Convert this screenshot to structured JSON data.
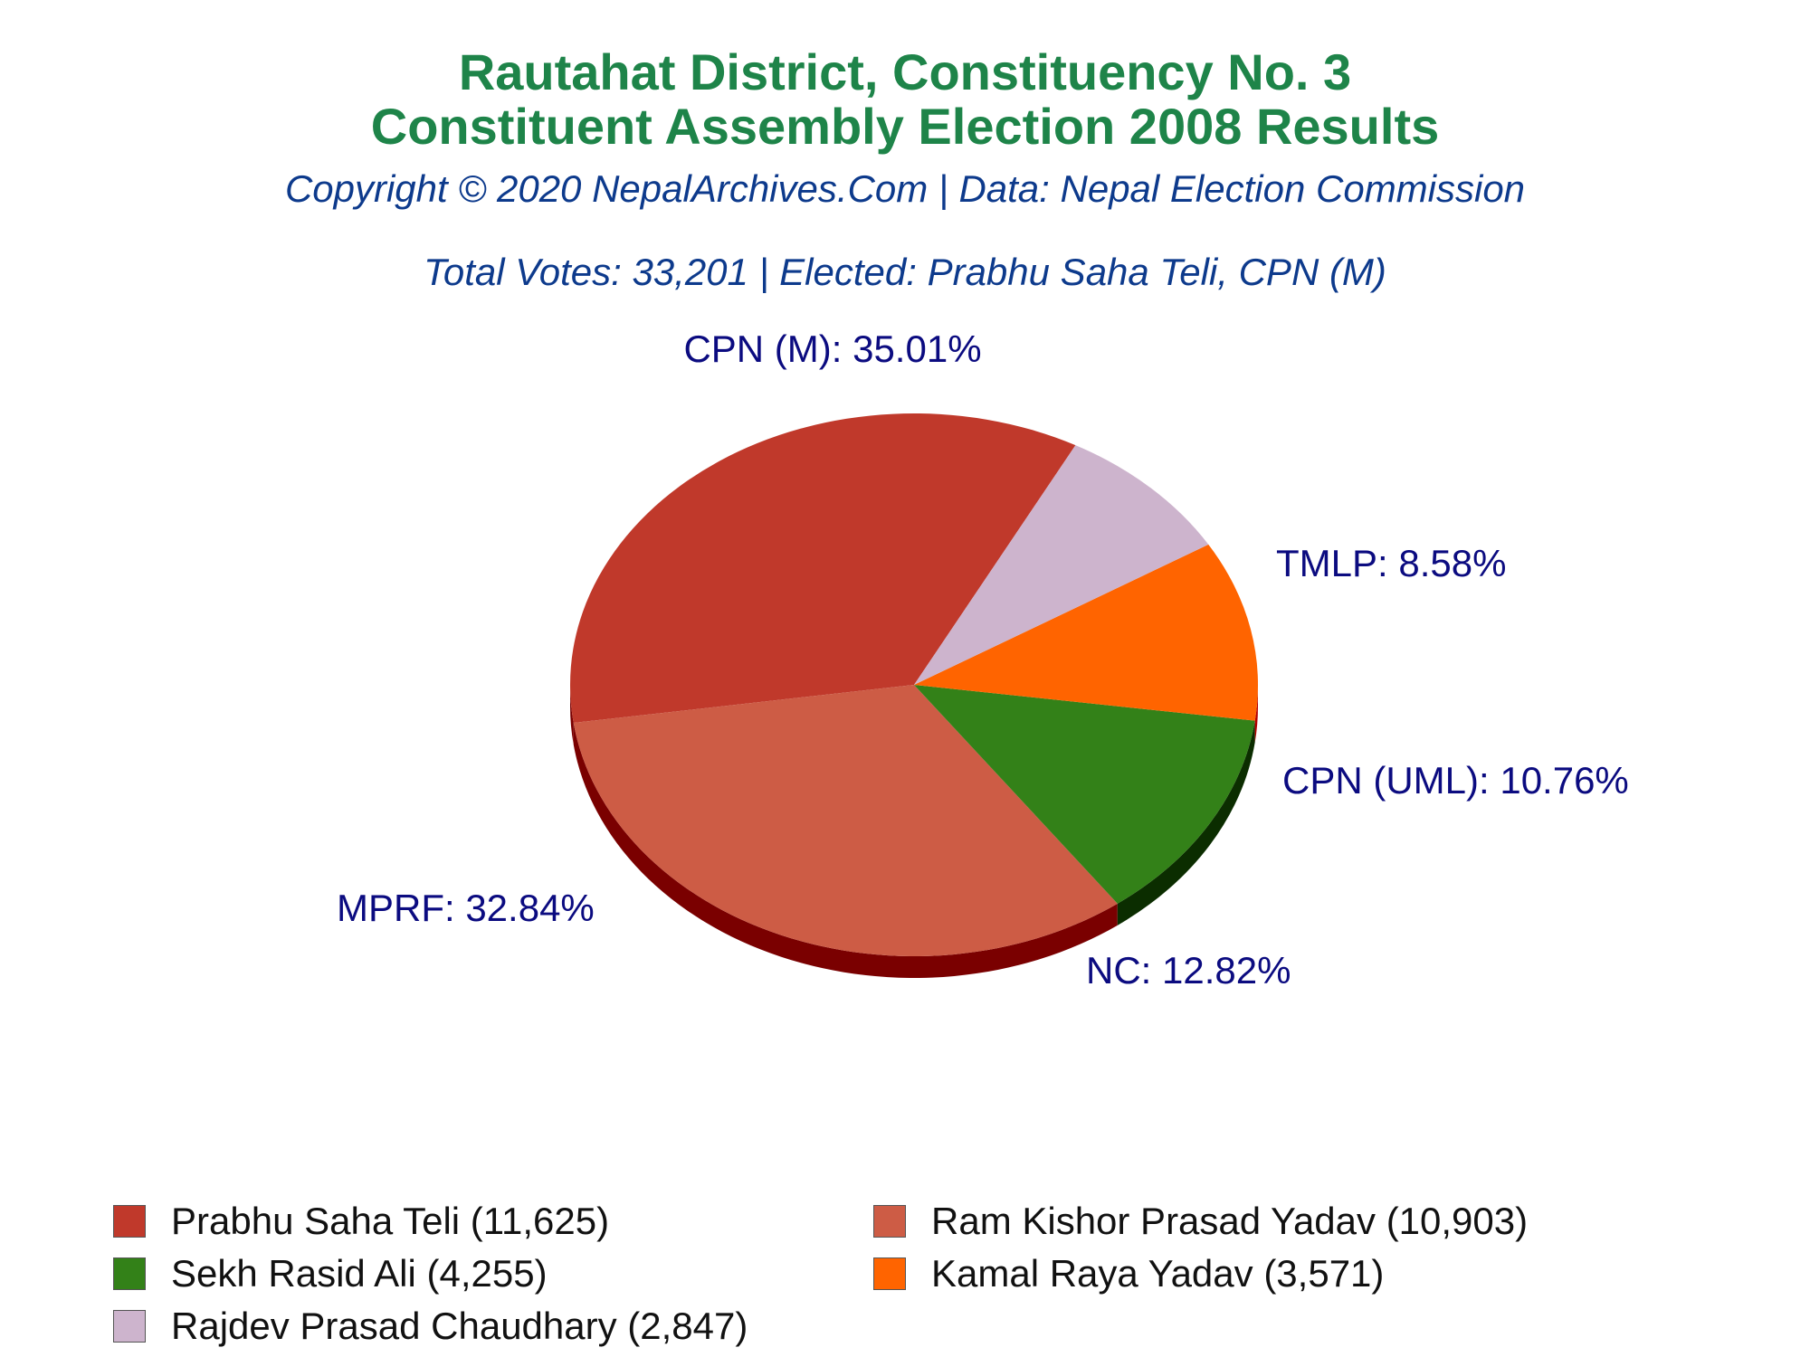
{
  "header": {
    "title_line1": "Rautahat District, Constituency No. 3",
    "title_line2": "Constituent Assembly Election 2008 Results",
    "copyright": "Copyright © 2020 NepalArchives.Com | Data: Nepal Election Commission",
    "summary": "Total Votes: 33,201 | Elected: Prabhu Saha Teli, CPN (M)"
  },
  "chart_data": {
    "type": "pie",
    "slices": [
      {
        "party": "CPN (M)",
        "candidate": "Prabhu Saha Teli",
        "votes": 11625,
        "percent": 35.01,
        "label": "CPN (M): 35.01%",
        "legend": "Prabhu Saha Teli (11,625)",
        "color": "#c0392b",
        "side_color": "#7a0000"
      },
      {
        "party": "MPRF",
        "candidate": "Ram Kishor Prasad Yadav",
        "votes": 10903,
        "percent": 32.84,
        "label": "MPRF: 32.84%",
        "legend": "Ram Kishor Prasad Yadav (10,903)",
        "color": "#cd5c45",
        "side_color": "#7a0000"
      },
      {
        "party": "NC",
        "candidate": "Sekh Rasid Ali",
        "votes": 4255,
        "percent": 12.82,
        "label": "NC: 12.82%",
        "legend": "Sekh Rasid Ali (4,255)",
        "color": "#338118",
        "side_color": "#0b2d00"
      },
      {
        "party": "CPN (UML)",
        "candidate": "Kamal Raya Yadav",
        "votes": 3571,
        "percent": 10.76,
        "label": "CPN (UML): 10.76%",
        "legend": "Kamal Raya Yadav (3,571)",
        "color": "#ff6400",
        "side_color": "#b30000"
      },
      {
        "party": "TMLP",
        "candidate": "Rajdev Prasad Chaudhary",
        "votes": 2847,
        "percent": 8.58,
        "label": "TMLP: 8.58%",
        "legend": "Rajdev Prasad Chaudhary (2,847)",
        "color": "#cdb4cd",
        "side_color": "#8a6a8a"
      }
    ],
    "total_votes": 33201,
    "legend_position": "bottom"
  }
}
